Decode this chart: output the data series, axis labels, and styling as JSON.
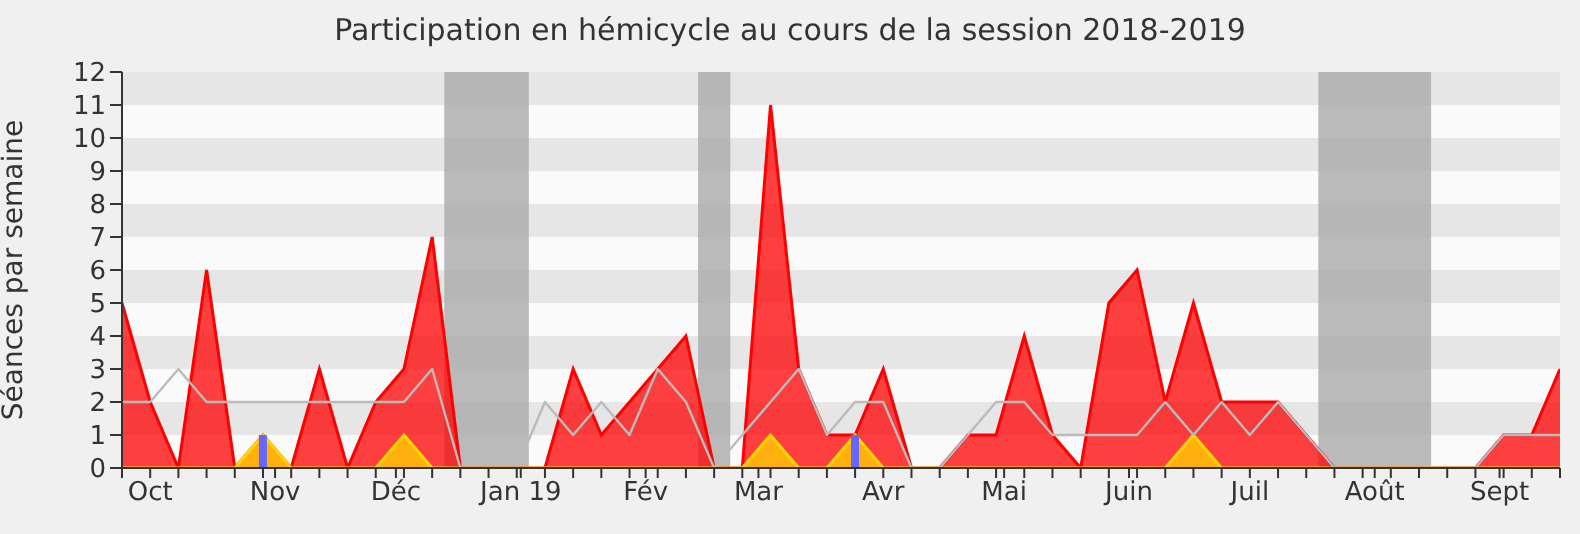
{
  "chart_data": {
    "type": "area",
    "title": "Participation en hémicycle au cours de la session 2018-2019",
    "ylabel": "Séances par semaine",
    "x": [
      "2018-09-24",
      "2018-10-01",
      "2018-10-08",
      "2018-10-15",
      "2018-10-22",
      "2018-10-29",
      "2018-11-05",
      "2018-11-12",
      "2018-11-19",
      "2018-11-26",
      "2018-12-03",
      "2018-12-10",
      "2018-12-17",
      "2018-12-24",
      "2018-12-31",
      "2019-01-07",
      "2019-01-14",
      "2019-01-21",
      "2019-01-28",
      "2019-02-04",
      "2019-02-11",
      "2019-02-18",
      "2019-02-25",
      "2019-03-04",
      "2019-03-11",
      "2019-03-18",
      "2019-03-25",
      "2019-04-01",
      "2019-04-08",
      "2019-04-15",
      "2019-04-22",
      "2019-04-29",
      "2019-05-06",
      "2019-05-13",
      "2019-05-20",
      "2019-05-27",
      "2019-06-03",
      "2019-06-10",
      "2019-06-17",
      "2019-06-24",
      "2019-07-01",
      "2019-07-08",
      "2019-07-15",
      "2019-07-22",
      "2019-07-29",
      "2019-08-05",
      "2019-08-12",
      "2019-08-19",
      "2019-08-26",
      "2019-09-02",
      "2019-09-09",
      "2019-09-16"
    ],
    "series": [
      {
        "color": "#ff0000",
        "values": [
          5,
          2,
          0,
          6,
          0,
          1,
          0,
          3,
          0,
          2,
          3,
          7,
          0,
          0,
          0,
          0,
          3,
          1,
          2,
          3,
          4,
          0,
          0,
          11,
          3,
          1,
          1,
          3,
          0,
          0,
          1,
          1,
          4,
          1,
          0,
          5,
          6,
          2,
          5,
          2,
          2,
          2,
          1,
          0,
          0,
          0,
          0,
          0,
          0,
          1,
          1,
          3
        ]
      },
      {
        "type": "line",
        "color": "#bbbbbb",
        "values": [
          2,
          2,
          3,
          2,
          2,
          2,
          2,
          2,
          2,
          2,
          2,
          3,
          0,
          0,
          0,
          2,
          1,
          2,
          1,
          3,
          2,
          0,
          1,
          2,
          3,
          1,
          2,
          2,
          0,
          0,
          1,
          2,
          2,
          1,
          1,
          1,
          1,
          2,
          1,
          2,
          1,
          2,
          1,
          0,
          0,
          0,
          0,
          0,
          0,
          1,
          1,
          1
        ]
      },
      {
        "color": "#ffd700",
        "values": [
          0,
          0,
          0,
          0,
          0,
          1,
          0,
          0,
          0,
          0,
          1,
          0,
          0,
          0,
          0,
          0,
          0,
          0,
          0,
          0,
          0,
          0,
          0,
          1,
          0,
          0,
          1,
          0,
          0,
          0,
          0,
          0,
          0,
          0,
          0,
          0,
          0,
          0,
          1,
          0,
          0,
          0,
          0,
          0,
          0,
          0,
          0,
          0,
          0,
          0,
          0,
          0
        ]
      },
      {
        "type": "bar",
        "color": "#6666ff",
        "values": [
          0,
          0,
          0,
          0,
          0,
          1,
          0,
          0,
          0,
          0,
          0,
          0,
          0,
          0,
          0,
          0,
          0,
          0,
          0,
          0,
          0,
          0,
          0,
          0,
          0,
          0,
          1,
          0,
          0,
          0,
          0,
          0,
          0,
          0,
          0,
          0,
          0,
          0,
          0,
          0,
          0,
          0,
          0,
          0,
          0,
          0,
          0,
          0,
          0,
          0,
          0,
          0
        ]
      }
    ],
    "xlim": [
      "2018-09-24",
      "2019-09-16"
    ],
    "xticks": [
      {
        "value": "2018-09-24",
        "label": null
      },
      {
        "value": "2018-10-08",
        "label": null
      },
      {
        "value": "2018-10-15",
        "label": null
      },
      {
        "value": "2018-10-22",
        "label": null
      },
      {
        "value": "2018-10-29",
        "label": null
      },
      {
        "value": "2018-11-05",
        "label": null
      },
      {
        "value": "2018-11-12",
        "label": null
      },
      {
        "value": "2018-11-19",
        "label": null
      },
      {
        "value": "2018-11-26",
        "label": null
      },
      {
        "value": "2018-12-03",
        "label": null
      },
      {
        "value": "2018-12-10",
        "label": null
      },
      {
        "value": "2018-12-17",
        "label": null
      },
      {
        "value": "2018-12-24",
        "label": null
      },
      {
        "value": "2018-12-31",
        "label": null
      },
      {
        "value": "2019-01-07",
        "label": null
      },
      {
        "value": "2019-01-14",
        "label": null
      },
      {
        "value": "2019-01-21",
        "label": null
      },
      {
        "value": "2019-01-28",
        "label": null
      },
      {
        "value": "2019-02-04",
        "label": null
      },
      {
        "value": "2019-02-11",
        "label": null
      },
      {
        "value": "2019-02-18",
        "label": null
      },
      {
        "value": "2019-02-25",
        "label": null
      },
      {
        "value": "2019-03-04",
        "label": null
      },
      {
        "value": "2019-03-11",
        "label": null
      },
      {
        "value": "2019-03-18",
        "label": null
      },
      {
        "value": "2019-03-25",
        "label": null
      },
      {
        "value": "2019-04-08",
        "label": null
      },
      {
        "value": "2019-04-15",
        "label": null
      },
      {
        "value": "2019-04-22",
        "label": null
      },
      {
        "value": "2019-04-29",
        "label": null
      },
      {
        "value": "2019-05-06",
        "label": null
      },
      {
        "value": "2019-05-13",
        "label": null
      },
      {
        "value": "2019-05-20",
        "label": null
      },
      {
        "value": "2019-05-27",
        "label": null
      },
      {
        "value": "2019-06-03",
        "label": null
      },
      {
        "value": "2019-06-10",
        "label": null
      },
      {
        "value": "2019-06-17",
        "label": null
      },
      {
        "value": "2019-06-24",
        "label": null
      },
      {
        "value": "2019-07-08",
        "label": null
      },
      {
        "value": "2019-07-15",
        "label": null
      },
      {
        "value": "2019-07-22",
        "label": null
      },
      {
        "value": "2019-07-29",
        "label": null
      },
      {
        "value": "2019-08-05",
        "label": null
      },
      {
        "value": "2019-08-12",
        "label": null
      },
      {
        "value": "2019-08-19",
        "label": null
      },
      {
        "value": "2019-08-26",
        "label": null
      },
      {
        "value": "2019-09-02",
        "label": null
      },
      {
        "value": "2019-09-09",
        "label": null
      },
      {
        "value": "2019-09-16",
        "label": null
      },
      {
        "value": "2018-10-01",
        "label": "Oct"
      },
      {
        "value": "2018-11-01",
        "label": "Nov"
      },
      {
        "value": "2018-12-01",
        "label": "Déc"
      },
      {
        "value": "2019-01-01",
        "label": "Jan 19"
      },
      {
        "value": "2019-02-01",
        "label": "Fév"
      },
      {
        "value": "2019-03-01",
        "label": "Mar"
      },
      {
        "value": "2019-04-01",
        "label": "Avr"
      },
      {
        "value": "2019-05-01",
        "label": "Mai"
      },
      {
        "value": "2019-06-01",
        "label": "Juin"
      },
      {
        "value": "2019-07-01",
        "label": "Juil"
      },
      {
        "value": "2019-08-01",
        "label": "Août"
      },
      {
        "value": "2019-09-01",
        "label": "Sept"
      }
    ],
    "ylim": [
      0,
      12
    ],
    "yticks": [
      0,
      1,
      2,
      3,
      4,
      5,
      6,
      7,
      8,
      9,
      10,
      11,
      12
    ],
    "bands": [
      {
        "axis": "x",
        "from": "2018-12-13",
        "to": "2019-01-03",
        "color": "#aaaaaa"
      },
      {
        "axis": "x",
        "from": "2019-02-14",
        "to": "2019-02-22",
        "color": "#aaaaaa"
      },
      {
        "axis": "x",
        "from": "2019-07-18",
        "to": "2019-08-15",
        "color": "#aaaaaa"
      }
    ]
  }
}
